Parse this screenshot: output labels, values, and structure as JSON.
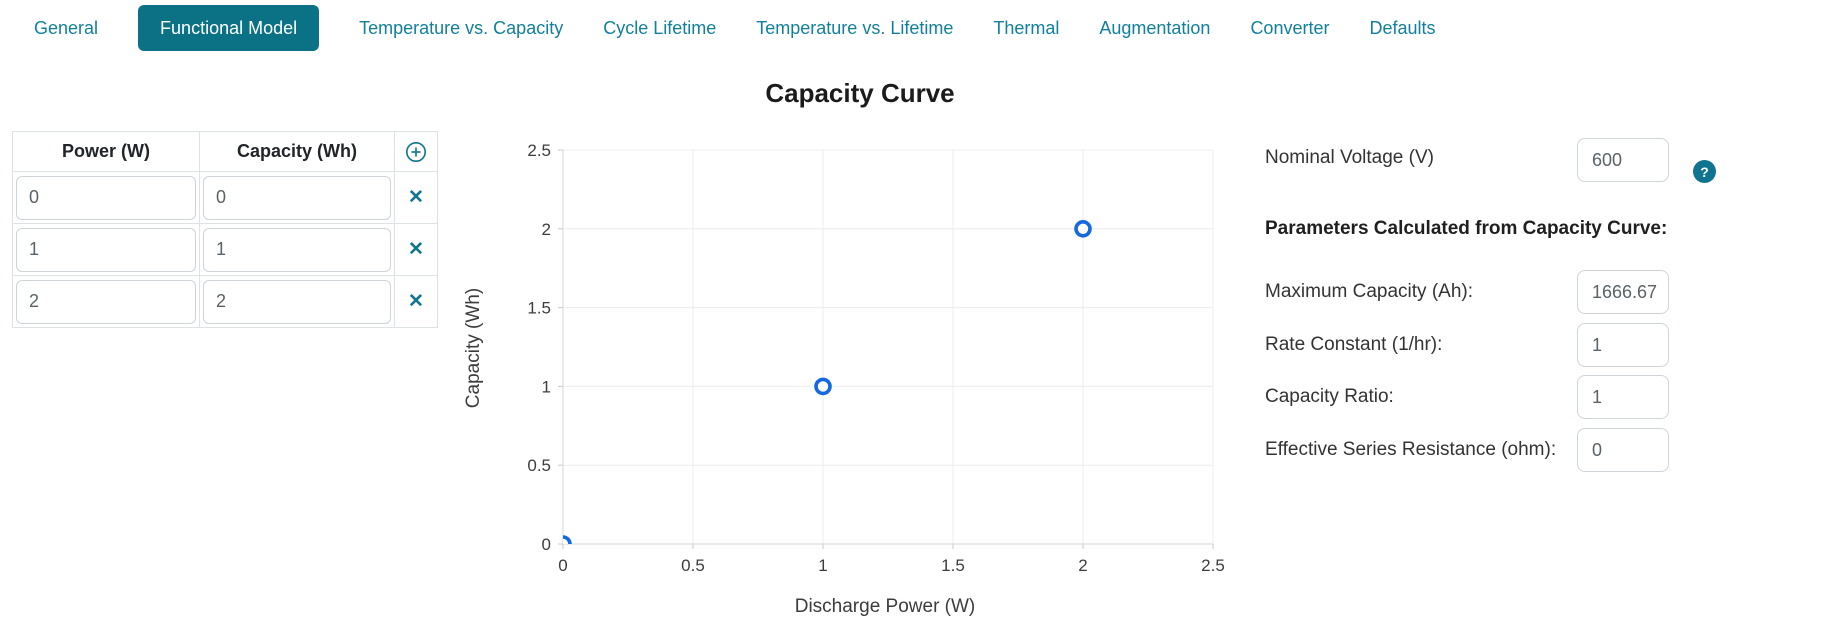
{
  "tabs": [
    {
      "label": "General",
      "active": false
    },
    {
      "label": "Functional Model",
      "active": true
    },
    {
      "label": "Temperature vs. Capacity",
      "active": false
    },
    {
      "label": "Cycle Lifetime",
      "active": false
    },
    {
      "label": "Temperature vs. Lifetime",
      "active": false
    },
    {
      "label": "Thermal",
      "active": false
    },
    {
      "label": "Augmentation",
      "active": false
    },
    {
      "label": "Converter",
      "active": false
    },
    {
      "label": "Defaults",
      "active": false
    }
  ],
  "table": {
    "columns": {
      "power": "Power (W)",
      "capacity": "Capacity (Wh)"
    },
    "add_icon": "plus-circle-icon",
    "remove_icon": "✕",
    "rows": [
      {
        "power": "0",
        "capacity": "0"
      },
      {
        "power": "1",
        "capacity": "1"
      },
      {
        "power": "2",
        "capacity": "2"
      }
    ]
  },
  "chart_data": {
    "type": "scatter",
    "title": "Capacity Curve",
    "xlabel": "Discharge Power (W)",
    "ylabel": "Capacity (Wh)",
    "xlim": [
      0,
      2.5
    ],
    "ylim": [
      0,
      2.5
    ],
    "x_ticks": [
      0,
      0.5,
      1,
      1.5,
      2,
      2.5
    ],
    "y_ticks": [
      0,
      0.5,
      1,
      1.5,
      2,
      2.5
    ],
    "grid": true,
    "legend": "none",
    "series": [
      {
        "name": "Capacity Curve",
        "points": [
          [
            0,
            0
          ],
          [
            1,
            1
          ],
          [
            2,
            2
          ]
        ]
      }
    ],
    "marker_color": "#1569e0",
    "marker_style": "open-circle"
  },
  "panel": {
    "nominal_voltage": {
      "label": "Nominal Voltage (V)",
      "value": "600"
    },
    "help_icon": "?",
    "section_title": "Parameters Calculated from Capacity Curve:",
    "fields": [
      {
        "label": "Maximum Capacity (Ah):",
        "value": "1666.67"
      },
      {
        "label": "Rate Constant (1/hr):",
        "value": "1"
      },
      {
        "label": "Capacity Ratio:",
        "value": "1"
      },
      {
        "label": "Effective Series Resistance (ohm):",
        "value": "0"
      }
    ]
  },
  "colors": {
    "accent_teal": "#0b7285",
    "icon_teal": "#0e7490",
    "marker_blue": "#1569e0",
    "grid_gray": "#ececec",
    "axis_gray": "#d6d6d6"
  }
}
